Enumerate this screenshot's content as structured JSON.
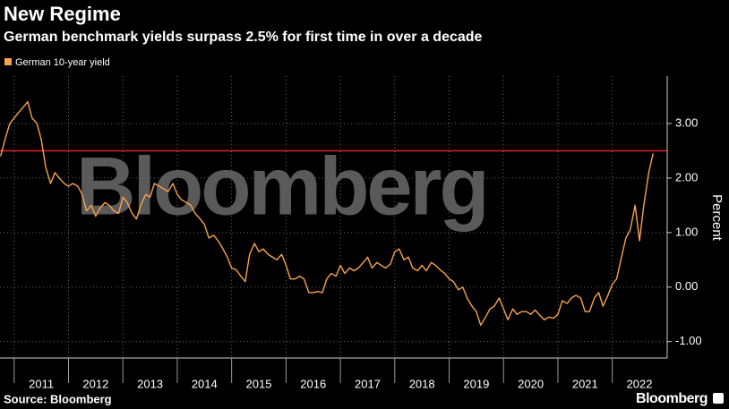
{
  "chart_data": {
    "type": "line",
    "title": "New Regime",
    "subtitle": "German benchmark yields surpass 2.5% for first time in over a decade",
    "y_axis_label": "Percent",
    "source": "Source: Bloomberg",
    "watermark": "Bloomberg",
    "branding": "Bloomberg",
    "reference_line": {
      "value": 2.5,
      "color": "#e0203a"
    },
    "grid": true,
    "legend": "top-left",
    "xlim": [
      2010.74,
      2023.01
    ],
    "xticks": [
      2011,
      2012,
      2013,
      2014,
      2015,
      2016,
      2017,
      2018,
      2019,
      2020,
      2021,
      2022
    ],
    "ylim": [
      -1.3,
      3.87
    ],
    "yticks": [
      {
        "value": -1,
        "label": "-1.00"
      },
      {
        "value": 0,
        "label": "0.00"
      },
      {
        "value": 1,
        "label": "1.00"
      },
      {
        "value": 2,
        "label": "2.00"
      },
      {
        "value": 3,
        "label": "3.00"
      }
    ],
    "x": [
      2010.75,
      2010.83,
      2010.92,
      2011.0,
      2011.08,
      2011.17,
      2011.25,
      2011.33,
      2011.42,
      2011.5,
      2011.58,
      2011.67,
      2011.75,
      2011.83,
      2011.92,
      2012.0,
      2012.08,
      2012.17,
      2012.25,
      2012.33,
      2012.42,
      2012.5,
      2012.58,
      2012.67,
      2012.75,
      2012.83,
      2012.92,
      2013.0,
      2013.08,
      2013.17,
      2013.25,
      2013.33,
      2013.42,
      2013.5,
      2013.58,
      2013.67,
      2013.75,
      2013.83,
      2013.92,
      2014.0,
      2014.08,
      2014.17,
      2014.25,
      2014.33,
      2014.42,
      2014.5,
      2014.58,
      2014.67,
      2014.75,
      2014.83,
      2014.92,
      2015.0,
      2015.08,
      2015.17,
      2015.25,
      2015.33,
      2015.42,
      2015.5,
      2015.58,
      2015.67,
      2015.75,
      2015.83,
      2015.92,
      2016.0,
      2016.08,
      2016.17,
      2016.25,
      2016.33,
      2016.42,
      2016.5,
      2016.58,
      2016.67,
      2016.75,
      2016.83,
      2016.92,
      2017.0,
      2017.08,
      2017.17,
      2017.25,
      2017.33,
      2017.42,
      2017.5,
      2017.58,
      2017.67,
      2017.75,
      2017.83,
      2017.92,
      2018.0,
      2018.08,
      2018.17,
      2018.25,
      2018.33,
      2018.42,
      2018.5,
      2018.58,
      2018.67,
      2018.75,
      2018.83,
      2018.92,
      2019.0,
      2019.08,
      2019.17,
      2019.25,
      2019.33,
      2019.42,
      2019.5,
      2019.58,
      2019.67,
      2019.75,
      2019.83,
      2019.92,
      2020.0,
      2020.08,
      2020.17,
      2020.25,
      2020.33,
      2020.42,
      2020.5,
      2020.58,
      2020.67,
      2020.75,
      2020.83,
      2020.92,
      2021.0,
      2021.08,
      2021.17,
      2021.25,
      2021.33,
      2021.42,
      2021.5,
      2021.58,
      2021.67,
      2021.75,
      2021.83,
      2021.92,
      2022.0,
      2022.08,
      2022.17,
      2022.25,
      2022.33,
      2022.42,
      2022.5,
      2022.58,
      2022.67,
      2022.75
    ],
    "series": [
      {
        "name": "German 10-year yield",
        "color": "#f7a24d",
        "values": [
          2.4,
          2.7,
          3.0,
          3.1,
          3.2,
          3.3,
          3.4,
          3.1,
          3.0,
          2.7,
          2.2,
          1.9,
          2.1,
          2.0,
          1.9,
          1.85,
          1.9,
          1.85,
          1.7,
          1.4,
          1.5,
          1.3,
          1.45,
          1.55,
          1.5,
          1.4,
          1.35,
          1.65,
          1.55,
          1.35,
          1.25,
          1.5,
          1.7,
          1.65,
          1.9,
          1.85,
          1.8,
          1.75,
          1.9,
          1.7,
          1.6,
          1.55,
          1.5,
          1.35,
          1.25,
          1.15,
          0.9,
          0.95,
          0.85,
          0.72,
          0.55,
          0.35,
          0.32,
          0.2,
          0.1,
          0.6,
          0.8,
          0.65,
          0.7,
          0.6,
          0.55,
          0.5,
          0.6,
          0.4,
          0.15,
          0.15,
          0.2,
          0.15,
          -0.1,
          -0.1,
          -0.08,
          -0.1,
          0.15,
          0.25,
          0.2,
          0.4,
          0.25,
          0.35,
          0.3,
          0.35,
          0.45,
          0.55,
          0.35,
          0.45,
          0.4,
          0.35,
          0.42,
          0.65,
          0.7,
          0.5,
          0.55,
          0.35,
          0.3,
          0.4,
          0.3,
          0.45,
          0.4,
          0.32,
          0.25,
          0.15,
          0.1,
          -0.05,
          0.0,
          -0.2,
          -0.35,
          -0.45,
          -0.7,
          -0.55,
          -0.4,
          -0.35,
          -0.2,
          -0.4,
          -0.6,
          -0.4,
          -0.5,
          -0.45,
          -0.45,
          -0.5,
          -0.42,
          -0.52,
          -0.6,
          -0.55,
          -0.57,
          -0.5,
          -0.25,
          -0.3,
          -0.2,
          -0.15,
          -0.2,
          -0.45,
          -0.45,
          -0.2,
          -0.1,
          -0.35,
          -0.15,
          0.05,
          0.15,
          0.55,
          0.9,
          1.05,
          1.5,
          0.85,
          1.5,
          2.1,
          2.45
        ]
      }
    ]
  }
}
